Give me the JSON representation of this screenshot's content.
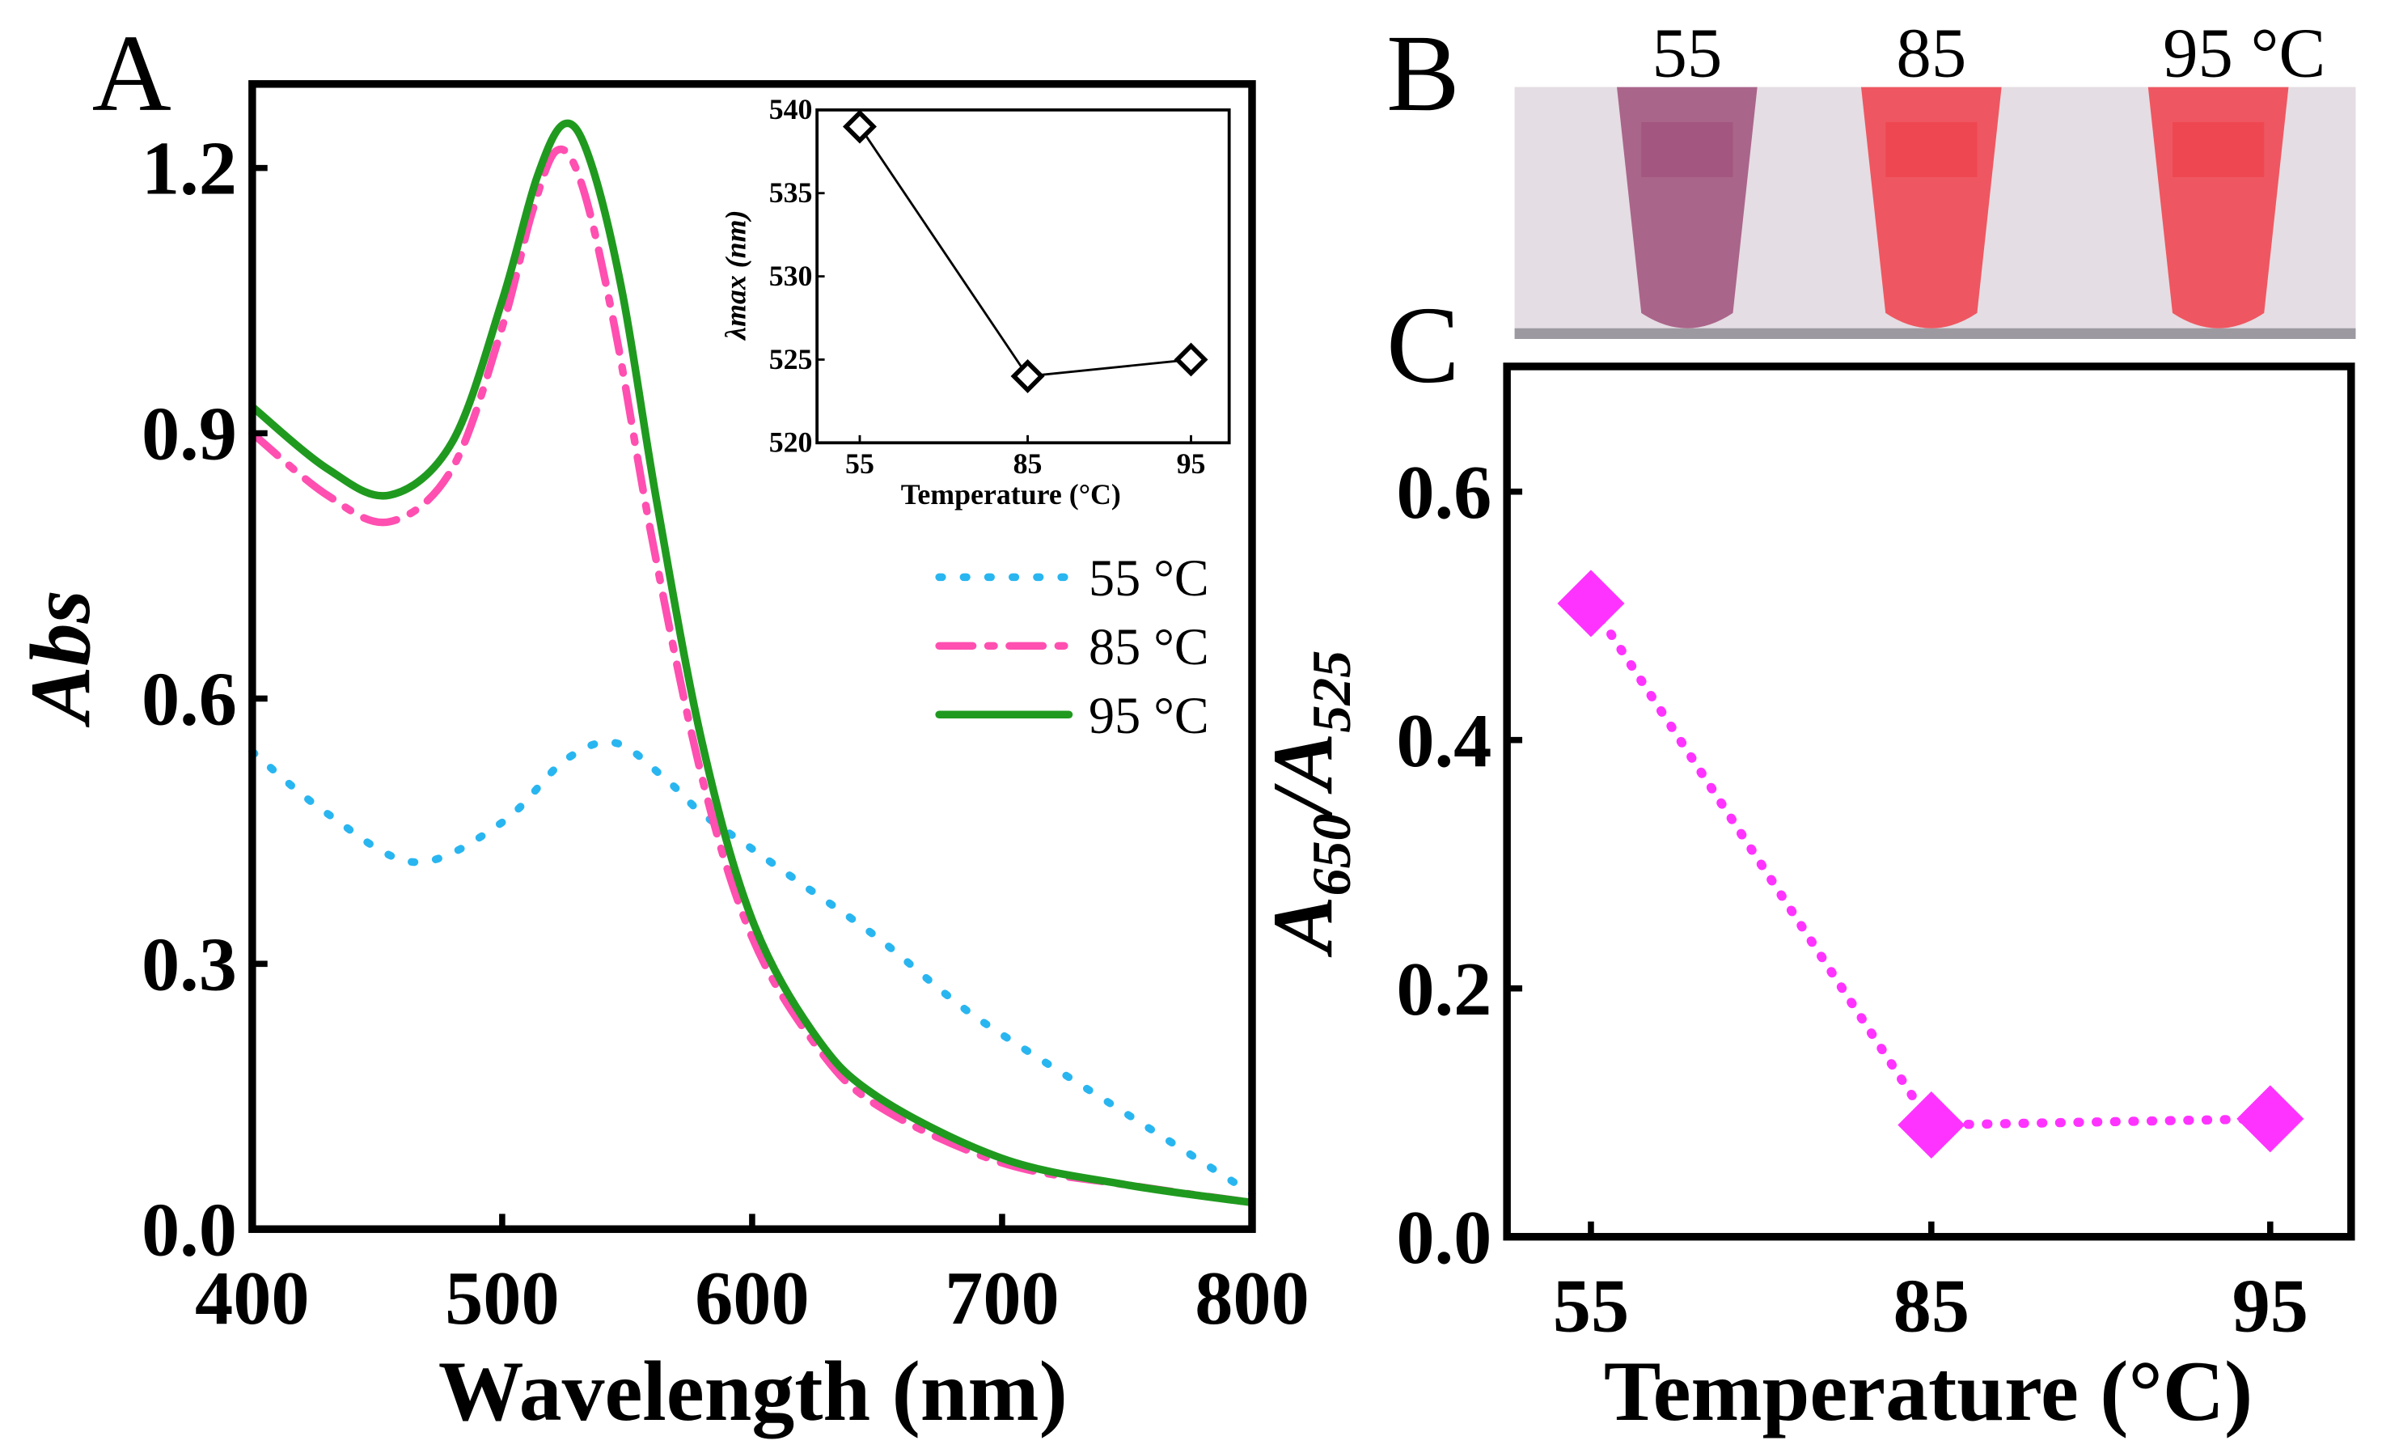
{
  "chart_data": [
    {
      "panel": "A",
      "type": "line",
      "xlabel": "Wavelength (nm)",
      "ylabel": "Abs",
      "xlim": [
        400,
        800
      ],
      "ylim": [
        0,
        1.25
      ],
      "xticks": [
        "400",
        "500",
        "600",
        "700",
        "800"
      ],
      "yticks": [
        "0.0",
        "0.3",
        "0.6",
        "0.9",
        "1.2"
      ],
      "legend_position": "center-right",
      "series": [
        {
          "name": "55 °C",
          "color": "#29b6f0",
          "style": "dotted",
          "x": [
            400,
            430,
            465,
            500,
            525,
            545,
            565,
            580,
            600,
            620,
            650,
            680,
            700,
            750,
            800
          ],
          "y": [
            0.54,
            0.47,
            0.415,
            0.46,
            0.53,
            0.55,
            0.51,
            0.47,
            0.43,
            0.39,
            0.33,
            0.26,
            0.22,
            0.13,
            0.04
          ]
        },
        {
          "name": "85 °C",
          "color": "#ff4fb0",
          "style": "dash-dot",
          "x": [
            400,
            430,
            455,
            480,
            500,
            512,
            522,
            532,
            545,
            560,
            580,
            600,
            625,
            650,
            700,
            750,
            800
          ],
          "y": [
            0.9,
            0.83,
            0.8,
            0.86,
            1.02,
            1.15,
            1.22,
            1.18,
            1.02,
            0.78,
            0.51,
            0.33,
            0.21,
            0.14,
            0.075,
            0.05,
            0.03
          ]
        },
        {
          "name": "95 °C",
          "color": "#1f9a1f",
          "style": "solid",
          "x": [
            400,
            430,
            455,
            480,
            500,
            514,
            525,
            535,
            548,
            562,
            580,
            600,
            625,
            650,
            700,
            750,
            800
          ],
          "y": [
            0.93,
            0.86,
            0.83,
            0.89,
            1.05,
            1.19,
            1.25,
            1.21,
            1.06,
            0.82,
            0.55,
            0.35,
            0.22,
            0.15,
            0.08,
            0.05,
            0.03
          ]
        }
      ]
    },
    {
      "panel": "A-inset",
      "type": "line",
      "xlabel": "Temperature (°C)",
      "ylabel": "λmax (nm)",
      "categories": [
        "55",
        "85",
        "95"
      ],
      "values": [
        539,
        524,
        525
      ],
      "ylim": [
        520,
        540
      ],
      "yticks": [
        "520",
        "525",
        "530",
        "535",
        "540"
      ],
      "color": "#000000",
      "marker": "diamond-open"
    },
    {
      "panel": "C",
      "type": "line",
      "xlabel": "Temperature (°C)",
      "ylabel": {
        "main": "A",
        "sub1": "650",
        "sep": "/A",
        "sub2": "525"
      },
      "categories": [
        "55",
        "85",
        "95"
      ],
      "values": [
        0.51,
        0.09,
        0.095
      ],
      "ylim": [
        0,
        0.7
      ],
      "yticks": [
        "0.0",
        "0.2",
        "0.4",
        "0.6"
      ],
      "color": "#ff33ff",
      "marker": "diamond-filled",
      "style": "dotted"
    }
  ],
  "panels": {
    "a": "A",
    "b": "B",
    "c": "C"
  },
  "photo": {
    "labels": [
      "55",
      "85",
      "95 °C"
    ],
    "tube_colors": [
      "#a0507a",
      "#f0404a",
      "#f0404a"
    ]
  }
}
